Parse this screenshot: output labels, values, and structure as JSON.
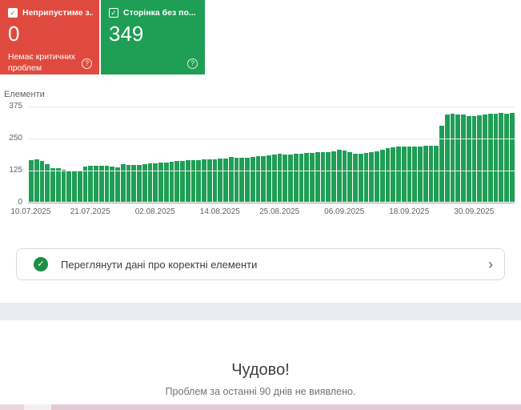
{
  "cards": {
    "errors": {
      "title": "Неприпустиме з...",
      "count": "0",
      "subtitle": "Немає критичних проблем",
      "color": "#e04a3e",
      "help_glyph": "?"
    },
    "valid": {
      "title": "Сторінка без по...",
      "count": "349",
      "color": "#1f9e55",
      "help_glyph": "?"
    }
  },
  "chart_data": {
    "type": "bar",
    "title": "",
    "xlabel": "",
    "ylabel": "Елементи",
    "ylim": [
      0,
      375
    ],
    "yticks": [
      375,
      250,
      125,
      0
    ],
    "grid": true,
    "bar_color": "#1f9e55",
    "date_range": [
      "10.07.2025",
      "07.10.2025"
    ],
    "x_ticks": [
      {
        "index": 0,
        "label": "10.07.2025"
      },
      {
        "index": 11,
        "label": "21.07.2025"
      },
      {
        "index": 23,
        "label": "02.08.2025"
      },
      {
        "index": 35,
        "label": "14.08.2025"
      },
      {
        "index": 46,
        "label": "25.08.2025"
      },
      {
        "index": 58,
        "label": "06.09.2025"
      },
      {
        "index": 70,
        "label": "18.09.2025"
      },
      {
        "index": 82,
        "label": "30.09.2025"
      }
    ],
    "values": [
      164,
      168,
      160,
      149,
      133,
      131,
      127,
      123,
      124,
      122,
      139,
      143,
      141,
      141,
      141,
      139,
      137,
      147,
      145,
      145,
      146,
      148,
      150,
      152,
      153,
      155,
      158,
      160,
      161,
      163,
      164,
      165,
      166,
      167,
      168,
      169,
      170,
      175,
      174,
      173,
      174,
      178,
      180,
      181,
      183,
      185,
      188,
      186,
      187,
      189,
      190,
      192,
      193,
      194,
      195,
      196,
      200,
      204,
      203,
      196,
      190,
      188,
      192,
      196,
      198,
      204,
      210,
      214,
      216,
      217,
      218,
      219,
      218,
      220,
      221,
      222,
      300,
      345,
      348,
      344,
      342,
      338,
      336,
      340,
      344,
      347,
      348,
      349,
      348,
      349
    ]
  },
  "banner": {
    "label": "Переглянути дані про коректні елементи",
    "check_color": "#1b8f44",
    "check_glyph": "✓",
    "chevron_glyph": "›"
  },
  "empty_state": {
    "title": "Чудово!",
    "subtitle": "Проблем за останні 90 днів не виявлено."
  }
}
